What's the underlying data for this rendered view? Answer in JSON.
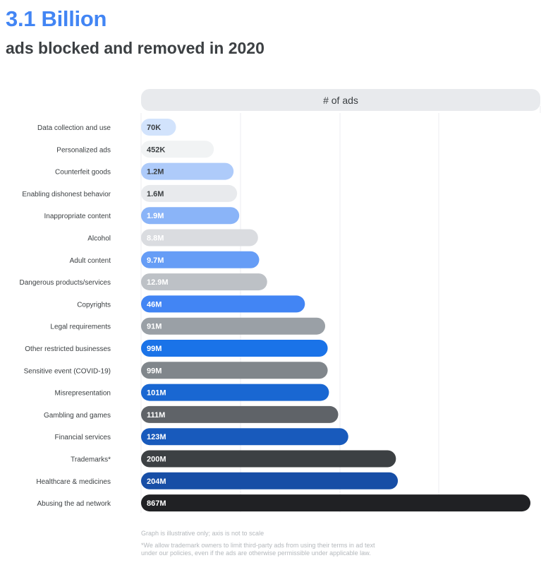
{
  "headline": "3.1 Billion",
  "subheadline": "ads blocked and removed in 2020",
  "chart_data": {
    "type": "bar",
    "orientation": "horizontal",
    "title": "# of ads",
    "categories": [
      "Data collection and use",
      "Personalized ads",
      "Counterfeit goods",
      "Enabling dishonest behavior",
      "Inappropriate content",
      "Alcohol",
      "Adult content",
      "Dangerous products/services",
      "Copyrights",
      "Legal requirements",
      "Other restricted businesses",
      "Sensitive event (COVID-19)",
      "Misrepresentation",
      "Gambling and games",
      "Financial services",
      "Trademarks*",
      "Healthcare & medicines",
      "Abusing the ad network"
    ],
    "values": [
      70000,
      452000,
      1200000,
      1600000,
      1900000,
      8800000,
      9700000,
      12900000,
      46000000,
      91000000,
      99000000,
      99000000,
      101000000,
      111000000,
      123000000,
      200000000,
      204000000,
      867000000
    ],
    "value_labels": [
      "70K",
      "452K",
      "1.2M",
      "1.6M",
      "1.9M",
      "8.8M",
      "9.7M",
      "12.9M",
      "46M",
      "91M",
      "99M",
      "99M",
      "101M",
      "111M",
      "123M",
      "200M",
      "204M",
      "867M"
    ],
    "bar_colors": [
      "#d2e3fc",
      "#f1f3f4",
      "#aecbfa",
      "#e8eaed",
      "#8ab4f8",
      "#dadce0",
      "#669df6",
      "#bdc1c6",
      "#4285f4",
      "#9aa0a6",
      "#1a73e8",
      "#80868b",
      "#1967d2",
      "#5f6368",
      "#185abc",
      "#3c4043",
      "#174ea6",
      "#202124"
    ],
    "label_colors": [
      "#3c4043",
      "#3c4043",
      "#3c4043",
      "#3c4043",
      "#ffffff",
      "#ffffff",
      "#ffffff",
      "#ffffff",
      "#ffffff",
      "#ffffff",
      "#ffffff",
      "#ffffff",
      "#ffffff",
      "#ffffff",
      "#ffffff",
      "#ffffff",
      "#ffffff",
      "#ffffff"
    ],
    "axis_note": "Graph is illustrative only; axis is not to scale",
    "grid": true,
    "xlabel": "",
    "ylabel": ""
  },
  "footnotes": {
    "axis_note": "Graph is illustrative only; axis is not to scale",
    "trademark_line1": "*We allow trademark owners to limit third-party ads from using their terms in ad text",
    "trademark_line2": "under our policies, even if the ads are otherwise permissible under applicable law."
  }
}
